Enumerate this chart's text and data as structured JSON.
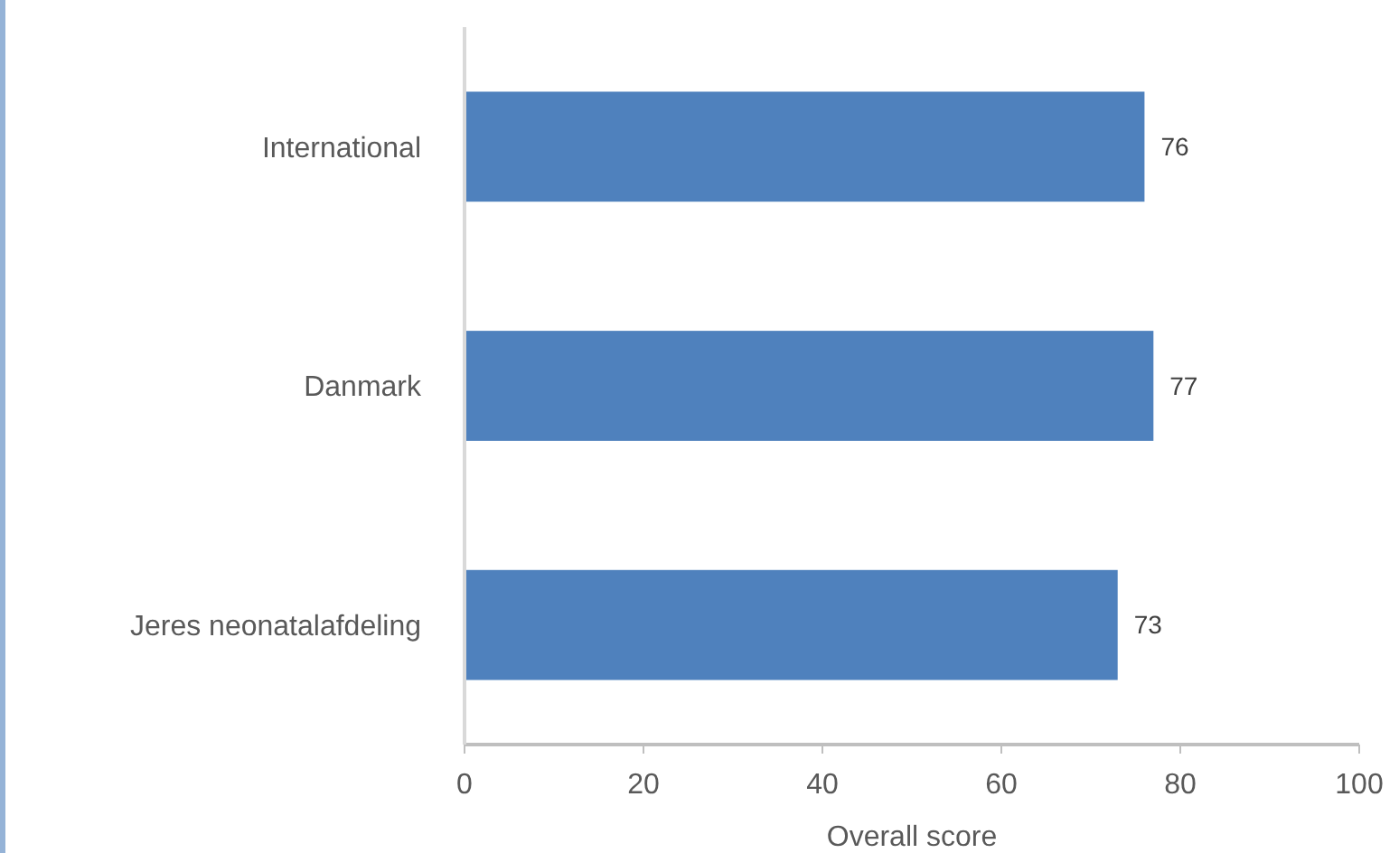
{
  "chart_data": {
    "type": "bar",
    "orientation": "horizontal",
    "xlabel": "Overall score",
    "categories": [
      "International",
      "Danmark",
      "Jeres neonatalafdeling"
    ],
    "values": [
      76,
      77,
      73
    ],
    "color": "#4f81bd",
    "xlim": [
      0,
      100
    ],
    "xticks": [
      0,
      20,
      40,
      60,
      80,
      100
    ],
    "data_labels": true,
    "grid": false
  }
}
